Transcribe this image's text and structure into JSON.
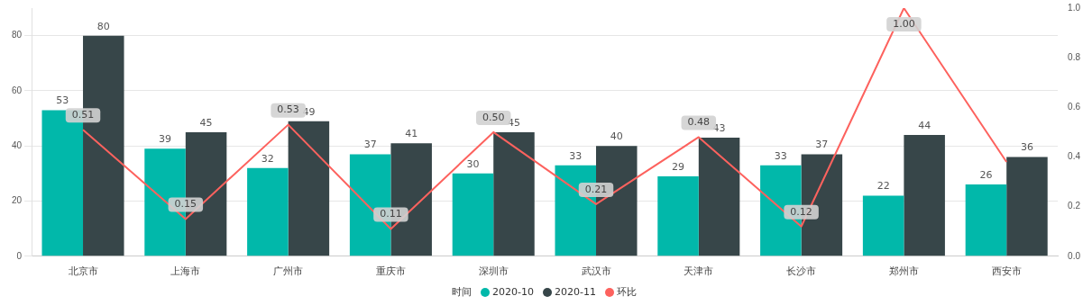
{
  "chart_data": {
    "type": "bar",
    "legend_title": "时间",
    "categories": [
      "北京市",
      "上海市",
      "广州市",
      "重庆市",
      "深圳市",
      "武汉市",
      "天津市",
      "长沙市",
      "郑州市",
      "西安市"
    ],
    "series": [
      {
        "name": "2020-10",
        "color": "#01b8aa",
        "values": [
          53,
          39,
          32,
          37,
          30,
          33,
          29,
          33,
          22,
          26
        ],
        "value_labels": [
          "53",
          "39",
          "32",
          "37",
          "30",
          "33",
          "29",
          "33",
          "22",
          "26"
        ]
      },
      {
        "name": "2020-11",
        "color": "#374649",
        "values": [
          80,
          45,
          49,
          41,
          45,
          40,
          43,
          37,
          44,
          36
        ],
        "value_labels": [
          "80",
          "45",
          "49",
          "41",
          "45",
          "40",
          "43",
          "37",
          "44",
          "36"
        ]
      },
      {
        "name": "环比",
        "type": "line",
        "axis": "y2",
        "color": "#fd625e",
        "values": [
          0.51,
          0.15,
          0.53,
          0.11,
          0.5,
          0.21,
          0.48,
          0.12,
          1.0,
          0.38
        ],
        "value_labels": [
          "0.51",
          "0.15",
          "0.53",
          "0.11",
          "0.50",
          "0.21",
          "0.48",
          "0.12",
          "1.00",
          null
        ]
      }
    ],
    "ylim": [
      0,
      90
    ],
    "yticks": [
      0,
      20,
      40,
      60,
      80
    ],
    "y2lim": [
      0,
      1.0
    ],
    "y2ticks": [
      {
        "value": 0,
        "label": "0.0"
      },
      {
        "value": 0.2,
        "label": "0.2"
      },
      {
        "value": 0.4,
        "label": "0.4"
      },
      {
        "value": 0.6,
        "label": "0.6"
      },
      {
        "value": 0.8,
        "label": "0.8"
      },
      {
        "value": 1.0,
        "label": "1.0"
      }
    ],
    "grid": "y",
    "legend": "bottom",
    "marker": "none"
  }
}
